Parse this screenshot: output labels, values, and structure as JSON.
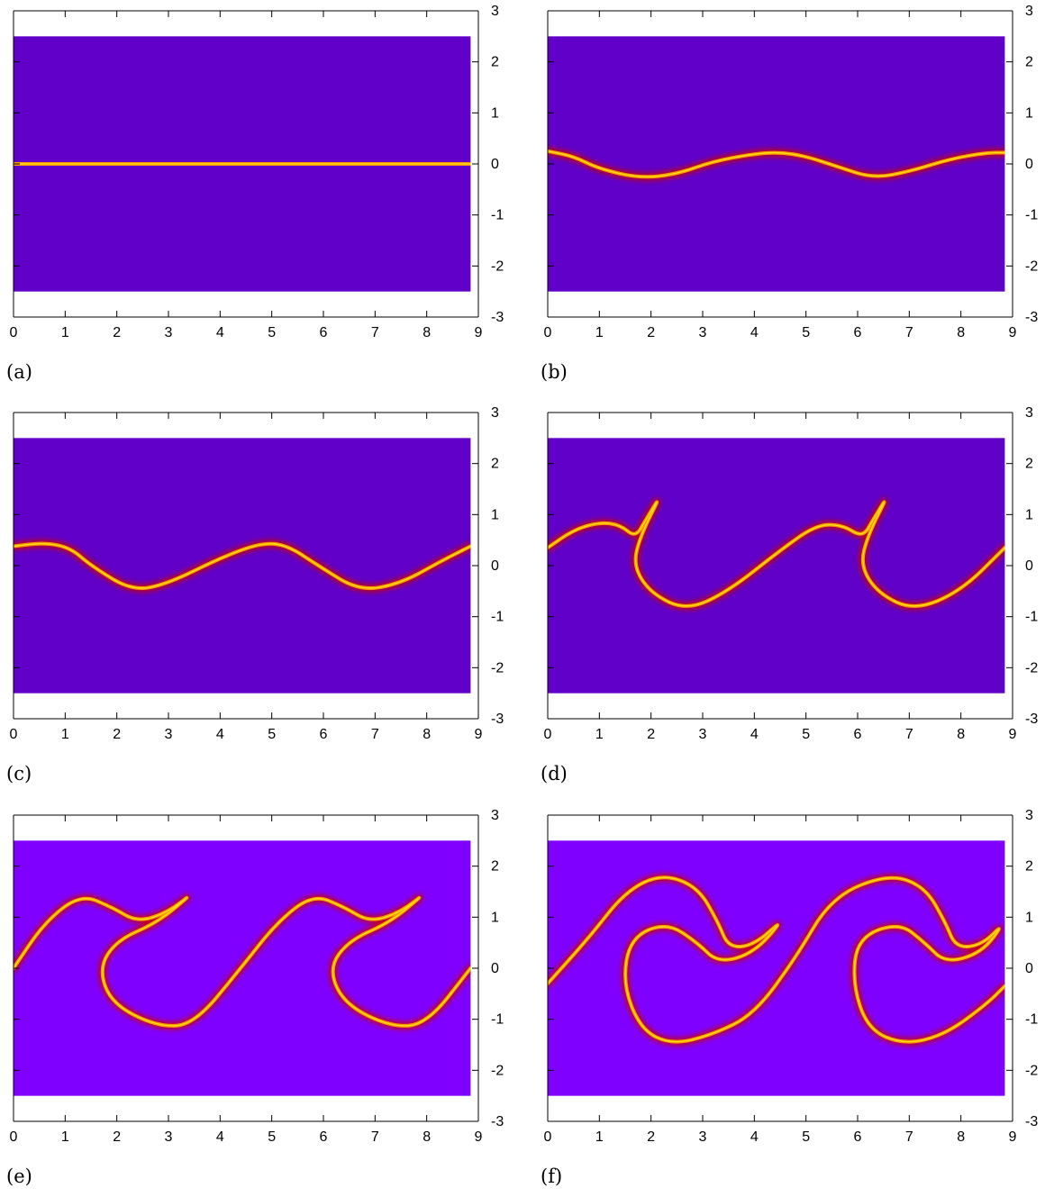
{
  "chart_data": [
    {
      "type": "heatmap",
      "caption": "(a)",
      "x_ticks": [
        0,
        1,
        2,
        3,
        4,
        5,
        6,
        7,
        8,
        9
      ],
      "y_ticks": [
        3,
        2,
        1,
        0,
        -1,
        -2,
        -3
      ],
      "xlim": [
        0,
        9
      ],
      "ylim": [
        -3,
        3
      ],
      "field_domain": {
        "x": [
          0,
          8.85
        ],
        "y": [
          -2.5,
          2.5
        ]
      },
      "background_color": "#6100c8",
      "shear_layer_color": "#ff9a00",
      "interface": [
        [
          0,
          0
        ],
        [
          8.85,
          0
        ]
      ]
    },
    {
      "type": "heatmap",
      "caption": "(b)",
      "x_ticks": [
        0,
        1,
        2,
        3,
        4,
        5,
        6,
        7,
        8,
        9
      ],
      "y_ticks": [
        3,
        2,
        1,
        0,
        -1,
        -2,
        -3
      ],
      "xlim": [
        0,
        9
      ],
      "ylim": [
        -3,
        3
      ],
      "field_domain": {
        "x": [
          0,
          8.85
        ],
        "y": [
          -2.5,
          2.5
        ]
      },
      "background_color": "#6100c8",
      "shear_layer_color": "#ff9a00",
      "interface": [
        [
          0,
          0.25
        ],
        [
          0.5,
          0.15
        ],
        [
          1.0,
          -0.1
        ],
        [
          1.8,
          -0.28
        ],
        [
          2.5,
          -0.2
        ],
        [
          3.2,
          0.05
        ],
        [
          4.0,
          0.2
        ],
        [
          4.5,
          0.23
        ],
        [
          5.0,
          0.15
        ],
        [
          5.6,
          -0.05
        ],
        [
          6.3,
          -0.28
        ],
        [
          7.0,
          -0.15
        ],
        [
          7.8,
          0.1
        ],
        [
          8.5,
          0.22
        ],
        [
          8.85,
          0.22
        ]
      ]
    },
    {
      "type": "heatmap",
      "caption": "(c)",
      "x_ticks": [
        0,
        1,
        2,
        3,
        4,
        5,
        6,
        7,
        8,
        9
      ],
      "y_ticks": [
        3,
        2,
        1,
        0,
        -1,
        -2,
        -3
      ],
      "xlim": [
        0,
        9
      ],
      "ylim": [
        -3,
        3
      ],
      "field_domain": {
        "x": [
          0,
          8.85
        ],
        "y": [
          -2.5,
          2.5
        ]
      },
      "background_color": "#6100c8",
      "shear_layer_color": "#ff9a00",
      "interface": [
        [
          0,
          0.38
        ],
        [
          0.6,
          0.45
        ],
        [
          1.1,
          0.35
        ],
        [
          1.5,
          0.0
        ],
        [
          2.3,
          -0.5
        ],
        [
          3.0,
          -0.35
        ],
        [
          4.0,
          0.15
        ],
        [
          4.8,
          0.45
        ],
        [
          5.3,
          0.4
        ],
        [
          5.9,
          0.0
        ],
        [
          6.7,
          -0.5
        ],
        [
          7.5,
          -0.35
        ],
        [
          8.3,
          0.1
        ],
        [
          8.85,
          0.38
        ]
      ]
    },
    {
      "type": "heatmap",
      "caption": "(d)",
      "x_ticks": [
        0,
        1,
        2,
        3,
        4,
        5,
        6,
        7,
        8,
        9
      ],
      "y_ticks": [
        3,
        2,
        1,
        0,
        -1,
        -2,
        -3
      ],
      "xlim": [
        0,
        9
      ],
      "ylim": [
        -3,
        3
      ],
      "field_domain": {
        "x": [
          0,
          8.85
        ],
        "y": [
          -2.5,
          2.5
        ]
      },
      "background_color": "#6100c8",
      "shear_layer_color": "#ff9a00",
      "interface": [
        [
          0,
          0.35
        ],
        [
          0.5,
          0.7
        ],
        [
          1.0,
          0.85
        ],
        [
          1.4,
          0.8
        ],
        [
          1.7,
          0.55
        ],
        [
          1.9,
          0.9
        ],
        [
          2.2,
          1.4
        ],
        [
          1.8,
          0.6
        ],
        [
          1.65,
          0.0
        ],
        [
          2.0,
          -0.55
        ],
        [
          2.7,
          -0.88
        ],
        [
          3.5,
          -0.5
        ],
        [
          4.5,
          0.3
        ],
        [
          5.2,
          0.8
        ],
        [
          5.7,
          0.8
        ],
        [
          6.1,
          0.55
        ],
        [
          6.3,
          0.9
        ],
        [
          6.6,
          1.4
        ],
        [
          6.2,
          0.6
        ],
        [
          6.05,
          0.0
        ],
        [
          6.4,
          -0.55
        ],
        [
          7.1,
          -0.88
        ],
        [
          8.0,
          -0.5
        ],
        [
          8.85,
          0.35
        ]
      ]
    },
    {
      "type": "heatmap",
      "caption": "(e)",
      "x_ticks": [
        0,
        1,
        2,
        3,
        4,
        5,
        6,
        7,
        8,
        9
      ],
      "y_ticks": [
        3,
        2,
        1,
        0,
        -1,
        -2,
        -3
      ],
      "xlim": [
        0,
        9
      ],
      "ylim": [
        -3,
        3
      ],
      "field_domain": {
        "x": [
          0,
          8.85
        ],
        "y": [
          -2.5,
          2.5
        ]
      },
      "background_color": "#7f00ff",
      "shear_layer_color": "#ff9a00",
      "interface": [
        [
          0,
          0.0
        ],
        [
          0.6,
          0.9
        ],
        [
          1.3,
          1.45
        ],
        [
          1.9,
          1.2
        ],
        [
          2.4,
          0.9
        ],
        [
          3.0,
          1.1
        ],
        [
          3.5,
          1.5
        ],
        [
          2.8,
          0.9
        ],
        [
          2.0,
          0.55
        ],
        [
          1.65,
          0.0
        ],
        [
          1.9,
          -0.7
        ],
        [
          2.8,
          -1.15
        ],
        [
          3.5,
          -1.1
        ],
        [
          4.4,
          0.0
        ],
        [
          5.1,
          0.9
        ],
        [
          5.8,
          1.45
        ],
        [
          6.4,
          1.2
        ],
        [
          6.9,
          0.9
        ],
        [
          7.5,
          1.1
        ],
        [
          8.0,
          1.5
        ],
        [
          7.3,
          0.9
        ],
        [
          6.5,
          0.55
        ],
        [
          6.1,
          0.0
        ],
        [
          6.4,
          -0.7
        ],
        [
          7.3,
          -1.15
        ],
        [
          8.0,
          -1.1
        ],
        [
          8.85,
          0.0
        ]
      ]
    },
    {
      "type": "heatmap",
      "caption": "(f)",
      "x_ticks": [
        0,
        1,
        2,
        3,
        4,
        5,
        6,
        7,
        8,
        9
      ],
      "y_ticks": [
        3,
        2,
        1,
        0,
        -1,
        -2,
        -3
      ],
      "xlim": [
        0,
        9
      ],
      "ylim": [
        -3,
        3
      ],
      "field_domain": {
        "x": [
          0,
          8.85
        ],
        "y": [
          -2.5,
          2.5
        ]
      },
      "background_color": "#7f00ff",
      "shear_layer_color": "#ff9a00",
      "interface": [
        [
          0,
          -0.3
        ],
        [
          0.8,
          0.6
        ],
        [
          1.5,
          1.5
        ],
        [
          2.2,
          1.85
        ],
        [
          2.9,
          1.6
        ],
        [
          3.3,
          0.9
        ],
        [
          3.5,
          0.4
        ],
        [
          4.0,
          0.45
        ],
        [
          4.6,
          1.0
        ],
        [
          4.0,
          0.3
        ],
        [
          3.3,
          0.1
        ],
        [
          2.9,
          0.5
        ],
        [
          2.3,
          0.9
        ],
        [
          1.6,
          0.6
        ],
        [
          1.45,
          -0.3
        ],
        [
          1.8,
          -1.2
        ],
        [
          2.4,
          -1.5
        ],
        [
          3.2,
          -1.3
        ],
        [
          4.0,
          -0.9
        ],
        [
          4.8,
          0.2
        ],
        [
          5.5,
          1.4
        ],
        [
          6.6,
          1.85
        ],
        [
          7.3,
          1.6
        ],
        [
          7.7,
          0.9
        ],
        [
          7.9,
          0.4
        ],
        [
          8.4,
          0.45
        ],
        [
          8.85,
          0.9
        ],
        [
          8.4,
          0.3
        ],
        [
          7.7,
          0.1
        ],
        [
          7.3,
          0.5
        ],
        [
          6.8,
          0.9
        ],
        [
          6.0,
          0.6
        ],
        [
          5.9,
          -0.3
        ],
        [
          6.2,
          -1.2
        ],
        [
          6.9,
          -1.5
        ],
        [
          7.7,
          -1.3
        ],
        [
          8.5,
          -0.7
        ],
        [
          8.85,
          -0.35
        ]
      ]
    }
  ]
}
